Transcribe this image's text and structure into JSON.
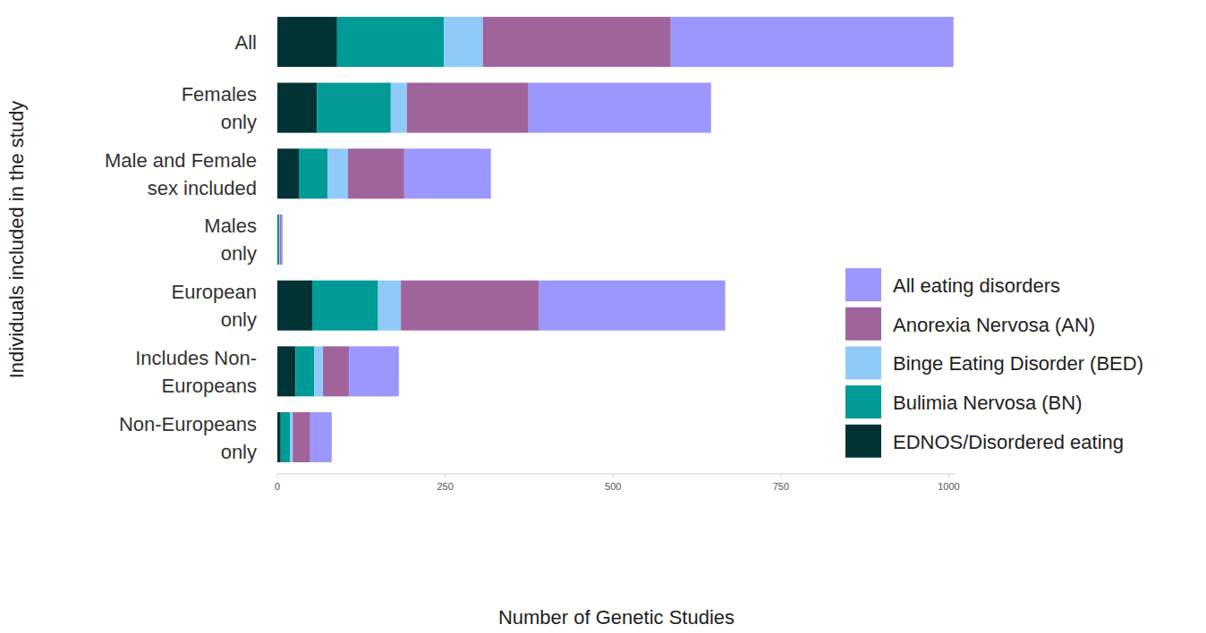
{
  "chart_data": {
    "type": "bar",
    "orientation": "horizontal",
    "stacked": true,
    "x_label": "Number of Genetic Studies",
    "y_label": "Individuals included in the study",
    "categories": [
      "All",
      "Females only",
      "Male and Female sex included",
      "Males only",
      "European only",
      "Includes Non-Europeans",
      "Non-Europeans only"
    ],
    "series": [
      {
        "name": "EDNOS/Disordered eating",
        "color": "#013335",
        "values": [
          89,
          59,
          32,
          1,
          52,
          27,
          5
        ]
      },
      {
        "name": "Bulimia Nervosa (BN)",
        "color": "#009a97",
        "values": [
          159,
          110,
          43,
          2,
          98,
          28,
          14
        ]
      },
      {
        "name": "Binge Eating Disorder (BED)",
        "color": "#90caf9",
        "values": [
          58,
          24,
          30,
          1,
          34,
          13,
          4
        ]
      },
      {
        "name": "Anorexia Nervosa (AN)",
        "color": "#a0649c",
        "values": [
          280,
          181,
          84,
          2,
          205,
          39,
          26
        ]
      },
      {
        "name": "All eating disorders",
        "color": "#9b97fe",
        "values": [
          421,
          272,
          129,
          2,
          278,
          74,
          32
        ]
      }
    ],
    "xlim": [
      0,
      1010
    ],
    "xticks": [
      0,
      250,
      500,
      750,
      1000
    ],
    "legend": "right",
    "grid": false
  }
}
